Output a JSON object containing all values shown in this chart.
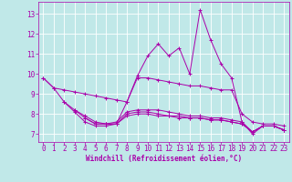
{
  "bg_color": "#c0e8e8",
  "line_color": "#aa00aa",
  "grid_color": "#a0d0d0",
  "xlabel": "Windchill (Refroidissement éolien,°C)",
  "x_ticks": [
    0,
    1,
    2,
    3,
    4,
    5,
    6,
    7,
    8,
    9,
    10,
    11,
    12,
    13,
    14,
    15,
    16,
    17,
    18,
    19,
    20,
    21,
    22,
    23
  ],
  "y_ticks": [
    7,
    8,
    9,
    10,
    11,
    12,
    13
  ],
  "ylim": [
    6.6,
    13.6
  ],
  "xlim": [
    -0.5,
    23.5
  ],
  "lines": [
    [
      9.8,
      9.3,
      8.6,
      8.1,
      7.6,
      7.4,
      7.4,
      7.5,
      8.6,
      9.9,
      10.9,
      11.5,
      10.9,
      11.3,
      10.0,
      13.2,
      11.7,
      10.5,
      9.8,
      7.6,
      7.0,
      7.4,
      7.4,
      7.2
    ],
    [
      9.8,
      9.3,
      9.2,
      9.1,
      9.0,
      8.9,
      8.8,
      8.7,
      8.6,
      9.8,
      9.8,
      9.7,
      9.6,
      9.5,
      9.4,
      9.4,
      9.3,
      9.2,
      9.2,
      8.0,
      7.6,
      7.5,
      7.5,
      7.4
    ],
    [
      null,
      null,
      8.6,
      8.2,
      7.9,
      7.6,
      7.5,
      7.6,
      8.1,
      8.2,
      8.2,
      8.2,
      8.1,
      8.0,
      7.9,
      7.9,
      7.8,
      7.8,
      7.7,
      7.6,
      7.1,
      7.4,
      7.4,
      7.2
    ],
    [
      null,
      null,
      null,
      8.2,
      7.8,
      7.5,
      7.5,
      7.5,
      8.0,
      8.1,
      8.1,
      8.0,
      7.9,
      7.9,
      7.8,
      7.8,
      7.7,
      7.7,
      7.6,
      7.5,
      7.1,
      7.4,
      7.4,
      7.2
    ],
    [
      null,
      null,
      null,
      null,
      7.8,
      7.5,
      7.5,
      7.5,
      7.9,
      8.0,
      8.0,
      7.9,
      7.9,
      7.8,
      7.8,
      7.8,
      7.7,
      7.7,
      7.6,
      7.5,
      7.1,
      7.4,
      7.4,
      7.2
    ]
  ],
  "tick_fontsize": 5.5,
  "xlabel_fontsize": 5.5
}
